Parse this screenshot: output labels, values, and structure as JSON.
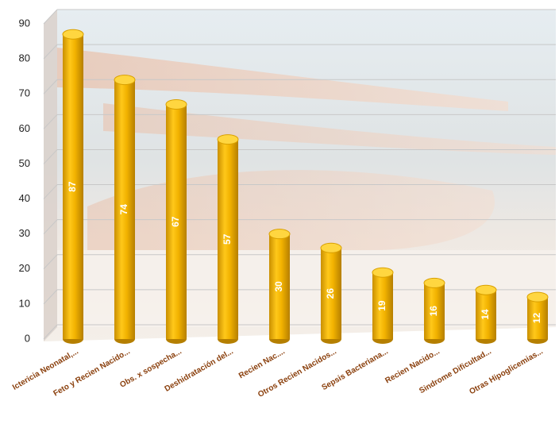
{
  "chart_data": {
    "type": "bar3d",
    "categories": [
      "Ictericia Neonatal,...",
      "Feto y Recien Nacido...",
      "Obs. x sospecha...",
      "Deshidratación del...",
      "Recien Nac....",
      "Otros Recien Nacidos...",
      "Sepsis Bacteriana...",
      "Recien Nacido...",
      "Sindrome Dificultad...",
      "Otras Hipoglicemias..."
    ],
    "values": [
      87,
      74,
      67,
      57,
      30,
      26,
      19,
      16,
      14,
      12
    ],
    "color": "#f2b200",
    "ylim": [
      0,
      90
    ],
    "yticks": [
      0,
      10,
      20,
      30,
      40,
      50,
      60,
      70,
      80,
      90
    ],
    "grid": true
  }
}
